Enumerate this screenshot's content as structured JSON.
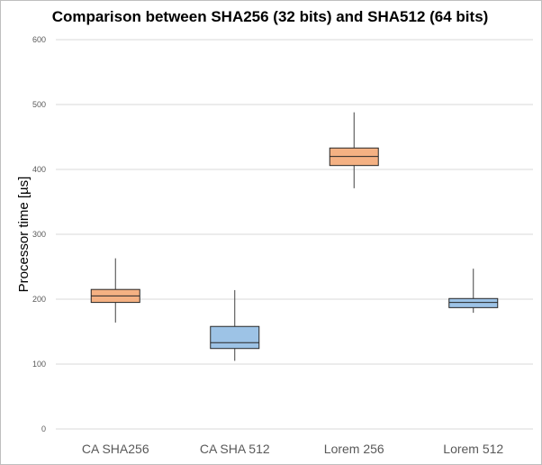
{
  "chart_data": {
    "type": "boxplot",
    "title": "Comparison between SHA256 (32 bits) and SHA512 (64 bits)",
    "xlabel": "",
    "ylabel": "Processor time [µs]",
    "ylim": [
      0,
      600
    ],
    "yticks": [
      "0",
      "100",
      "200",
      "300",
      "400",
      "500",
      "600"
    ],
    "grid": true,
    "categories": [
      "CA SHA256",
      "CA SHA 512",
      "Lorem 256",
      "Lorem 512"
    ],
    "boxes": [
      {
        "min": 164,
        "q1": 195,
        "median": 205,
        "q3": 215,
        "max": 263,
        "color": "#f4b183"
      },
      {
        "min": 105,
        "q1": 124,
        "median": 133,
        "q3": 158,
        "max": 214,
        "color": "#9dc3e6"
      },
      {
        "min": 371,
        "q1": 406,
        "median": 420,
        "q3": 433,
        "max": 488,
        "color": "#f4b183"
      },
      {
        "min": 179,
        "q1": 187,
        "median": 195,
        "q3": 201,
        "max": 247,
        "color": "#9dc3e6"
      }
    ]
  }
}
